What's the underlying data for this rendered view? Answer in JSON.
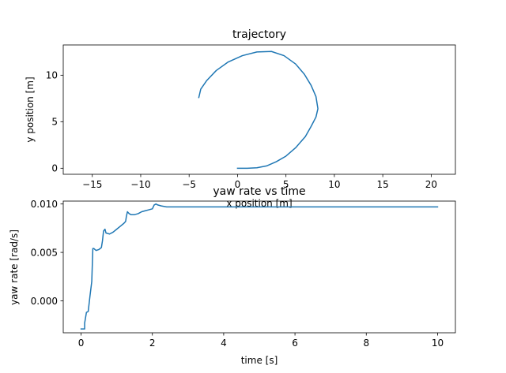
{
  "chart_data": [
    {
      "type": "line",
      "title": "trajectory",
      "xlabel": "x position [m]",
      "ylabel": "y position [m]",
      "xlim": [
        -18.0,
        22.5
      ],
      "ylim": [
        -0.65,
        13.25
      ],
      "xticks": [
        -15,
        -10,
        -5,
        0,
        5,
        10,
        15,
        20
      ],
      "yticks": [
        0,
        5,
        10
      ],
      "xtick_labels": [
        "−15",
        "−10",
        "−5",
        "0",
        "5",
        "10",
        "15",
        "20"
      ],
      "ytick_labels": [
        "0",
        "5",
        "10"
      ],
      "grid": false,
      "series": [
        {
          "color": "#1f77b4",
          "x": [
            0,
            1,
            2,
            3,
            4,
            5,
            6,
            7,
            7.6,
            8.1,
            8.3,
            8.1,
            7.6,
            6.9,
            6.0,
            4.8,
            3.5,
            2.0,
            0.5,
            -1.0,
            -2.2,
            -3.2,
            -3.8,
            -4.0
          ],
          "y": [
            0,
            0.0,
            0.05,
            0.25,
            0.7,
            1.3,
            2.2,
            3.4,
            4.5,
            5.5,
            6.4,
            7.7,
            8.9,
            10.1,
            11.2,
            12.1,
            12.55,
            12.5,
            12.1,
            11.4,
            10.5,
            9.4,
            8.5,
            7.6
          ]
        }
      ]
    },
    {
      "type": "line",
      "title": "yaw rate vs time",
      "xlabel": "time [s]",
      "ylabel": "yaw rate [rad/s]",
      "xlim": [
        -0.5,
        10.5
      ],
      "ylim": [
        -0.0033,
        0.0103
      ],
      "xticks": [
        0,
        2,
        4,
        6,
        8,
        10
      ],
      "yticks": [
        0.0,
        0.005,
        0.01
      ],
      "xtick_labels": [
        "0",
        "2",
        "4",
        "6",
        "8",
        "10"
      ],
      "ytick_labels": [
        "0.000",
        "0.005",
        "0.010"
      ],
      "grid": false,
      "series": [
        {
          "color": "#1f77b4",
          "x": [
            0.0,
            0.1,
            0.1,
            0.15,
            0.15,
            0.2,
            0.25,
            0.3,
            0.33,
            0.36,
            0.42,
            0.5,
            0.57,
            0.6,
            0.63,
            0.67,
            0.7,
            0.8,
            0.9,
            1.0,
            1.1,
            1.2,
            1.25,
            1.27,
            1.3,
            1.35,
            1.4,
            1.5,
            1.6,
            1.7,
            1.8,
            1.9,
            2.0,
            2.05,
            2.1,
            2.15,
            2.25,
            2.4,
            2.6,
            3.0,
            4.0,
            5.0,
            6.0,
            7.0,
            8.0,
            9.0,
            10.0
          ],
          "y": [
            -0.0029,
            -0.0029,
            -0.0023,
            -0.0012,
            -0.0012,
            -0.0011,
            0.0005,
            0.002,
            0.0054,
            0.0054,
            0.0052,
            0.0053,
            0.0055,
            0.0062,
            0.0072,
            0.0074,
            0.007,
            0.0069,
            0.0071,
            0.0074,
            0.0077,
            0.008,
            0.0082,
            0.0087,
            0.0092,
            0.009,
            0.0089,
            0.0089,
            0.009,
            0.0092,
            0.0093,
            0.0094,
            0.0095,
            0.0099,
            0.01,
            0.0099,
            0.0098,
            0.0097,
            0.0097,
            0.0097,
            0.0097,
            0.0097,
            0.0097,
            0.0097,
            0.0097,
            0.0097,
            0.0097
          ]
        }
      ]
    }
  ]
}
